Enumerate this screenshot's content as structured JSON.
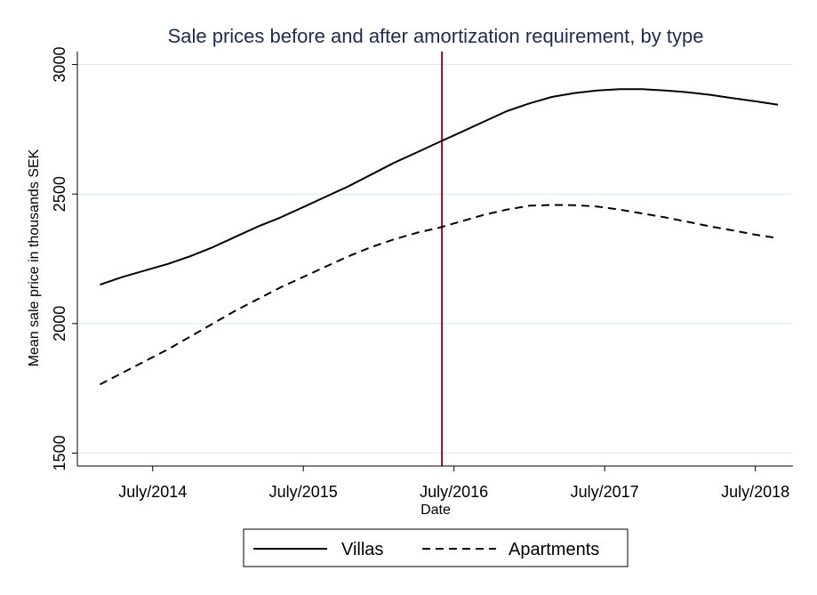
{
  "chart_data": {
    "type": "line",
    "title": "Sale prices before and after amortization requirement, by type",
    "xlabel": "Date",
    "ylabel": "Mean sale price in  thousands SEK",
    "x_tick_labels": [
      "July/2014",
      "July/2015",
      "July/2016",
      "July/2017",
      "July/2018"
    ],
    "x_tick_values": [
      2014.5,
      2015.5,
      2016.5,
      2017.5,
      2018.5
    ],
    "y_ticks": [
      1500,
      2000,
      2500,
      3000
    ],
    "y_tick_labels": [
      "1500",
      "2000",
      "2500",
      "3000"
    ],
    "xlim": [
      2014.0,
      2018.75
    ],
    "ylim": [
      1450,
      3050
    ],
    "grid": true,
    "vline": {
      "x": 2016.42,
      "color": "#8b0a2f"
    },
    "x": [
      2014.15,
      2014.3,
      2014.45,
      2014.6,
      2014.75,
      2014.9,
      2015.05,
      2015.2,
      2015.35,
      2015.5,
      2015.65,
      2015.8,
      2015.95,
      2016.1,
      2016.25,
      2016.4,
      2016.55,
      2016.7,
      2016.85,
      2017.0,
      2017.15,
      2017.3,
      2017.45,
      2017.6,
      2017.75,
      2017.9,
      2018.05,
      2018.2,
      2018.35,
      2018.5,
      2018.65
    ],
    "series": [
      {
        "name": "Villas",
        "style": "solid",
        "values": [
          2150,
          2180,
          2205,
          2230,
          2260,
          2295,
          2335,
          2375,
          2410,
          2450,
          2490,
          2530,
          2575,
          2620,
          2660,
          2700,
          2740,
          2780,
          2820,
          2850,
          2875,
          2890,
          2900,
          2905,
          2905,
          2900,
          2893,
          2883,
          2870,
          2858,
          2845
        ]
      },
      {
        "name": "Apartments",
        "style": "dashed",
        "values": [
          1765,
          1810,
          1855,
          1900,
          1950,
          2000,
          2050,
          2095,
          2140,
          2180,
          2220,
          2260,
          2295,
          2325,
          2350,
          2370,
          2395,
          2420,
          2440,
          2455,
          2458,
          2457,
          2452,
          2440,
          2425,
          2410,
          2393,
          2375,
          2360,
          2343,
          2330
        ]
      }
    ],
    "legend_position": "bottom-center"
  },
  "colors": {
    "line": "#000000",
    "grid": "#e6eaed",
    "title": "#1e2b4a",
    "vline": "#8b0a2f"
  }
}
